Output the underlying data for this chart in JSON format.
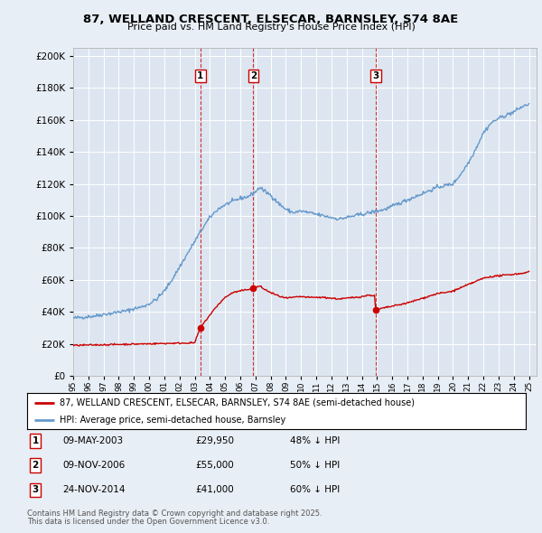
{
  "title": "87, WELLAND CRESCENT, ELSECAR, BARNSLEY, S74 8AE",
  "subtitle": "Price paid vs. HM Land Registry's House Price Index (HPI)",
  "legend_line1": "87, WELLAND CRESCENT, ELSECAR, BARNSLEY, S74 8AE (semi-detached house)",
  "legend_line2": "HPI: Average price, semi-detached house, Barnsley",
  "sales": [
    {
      "label": "1",
      "date_str": "09-MAY-2003",
      "date_x": 2003.36,
      "price": 29950,
      "pct": "48% ↓ HPI"
    },
    {
      "label": "2",
      "date_str": "09-NOV-2006",
      "date_x": 2006.86,
      "price": 55000,
      "pct": "50% ↓ HPI"
    },
    {
      "label": "3",
      "date_str": "24-NOV-2014",
      "date_x": 2014.9,
      "price": 41000,
      "pct": "60% ↓ HPI"
    }
  ],
  "footer_line1": "Contains HM Land Registry data © Crown copyright and database right 2025.",
  "footer_line2": "This data is licensed under the Open Government Licence v3.0.",
  "xlim": [
    1995.0,
    2025.5
  ],
  "ylim": [
    0,
    205000
  ],
  "yticks": [
    0,
    20000,
    40000,
    60000,
    80000,
    100000,
    120000,
    140000,
    160000,
    180000,
    200000
  ],
  "price_color": "#cc0000",
  "hpi_color": "#6699cc",
  "background_color": "#e8eef5",
  "plot_bg": "#dde6f0",
  "vline_color": "#cc0000",
  "title_fontsize": 9.5,
  "subtitle_fontsize": 8.0
}
